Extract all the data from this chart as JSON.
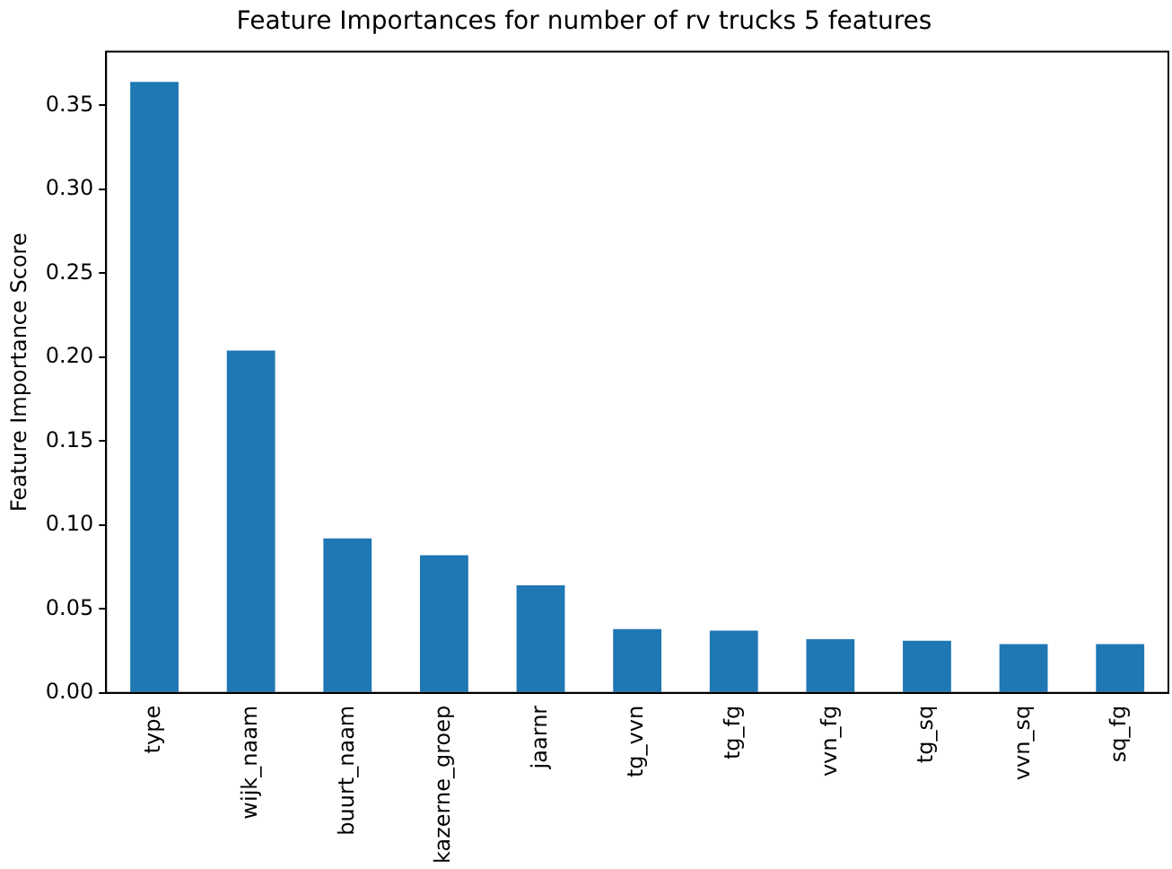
{
  "chart_data": {
    "type": "bar",
    "title": "Feature Importances for number of rv trucks 5 features",
    "ylabel": "Feature Importance Score",
    "categories": [
      "type",
      "wijk_naam",
      "buurt_naam",
      "kazerne_groep",
      "jaarnr",
      "tg_vvn",
      "tg_fg",
      "vvn_fg",
      "tg_sq",
      "vvn_sq",
      "sq_fg"
    ],
    "values": [
      0.364,
      0.204,
      0.092,
      0.082,
      0.064,
      0.038,
      0.037,
      0.032,
      0.031,
      0.029,
      0.029
    ],
    "color": "#1f77b4",
    "ylim": [
      0,
      0.382
    ],
    "yticks": [
      {
        "value": 0,
        "label": "0.00"
      },
      {
        "value": 0.05,
        "label": "0.05"
      },
      {
        "value": 0.1,
        "label": "0.10"
      },
      {
        "value": 0.15,
        "label": "0.15"
      },
      {
        "value": 0.2,
        "label": "0.20"
      },
      {
        "value": 0.25,
        "label": "0.25"
      },
      {
        "value": 0.3,
        "label": "0.30"
      },
      {
        "value": 0.35,
        "label": "0.35"
      }
    ],
    "grid": false,
    "legend": false
  }
}
